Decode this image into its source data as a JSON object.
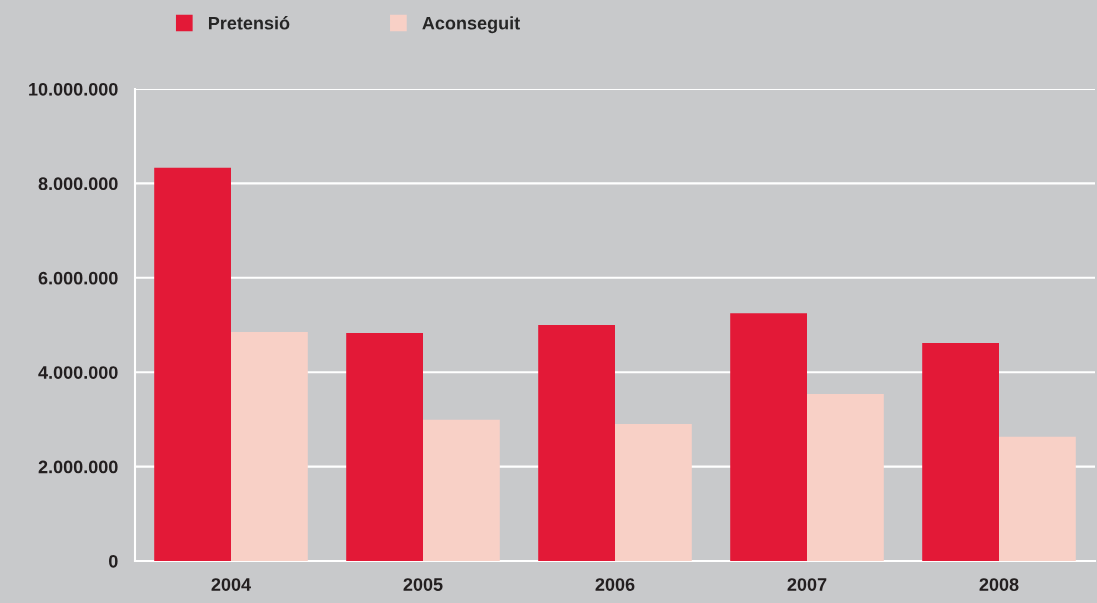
{
  "chart_data": {
    "type": "bar",
    "categories": [
      "2004",
      "2005",
      "2006",
      "2007",
      "2008"
    ],
    "series": [
      {
        "name": "Pretensió",
        "color": "#e31937",
        "values": [
          8330000,
          4830000,
          5000000,
          5250000,
          4620000
        ]
      },
      {
        "name": "Aconseguit",
        "color": "#f8d0c6",
        "values": [
          4850000,
          2990000,
          2900000,
          3540000,
          2630000
        ]
      }
    ],
    "ylim": [
      0,
      10000000
    ],
    "yticks": [
      0,
      {
        "value": 2000000,
        "label": "2.000.000"
      },
      {
        "value": 4000000,
        "label": "4.000.000"
      },
      {
        "value": 6000000,
        "label": "6.000.000"
      },
      {
        "value": 8000000,
        "label": "8.000.000"
      },
      {
        "value": 10000000,
        "label": "10.000.000"
      }
    ],
    "grid": "y",
    "legend": "top left"
  }
}
